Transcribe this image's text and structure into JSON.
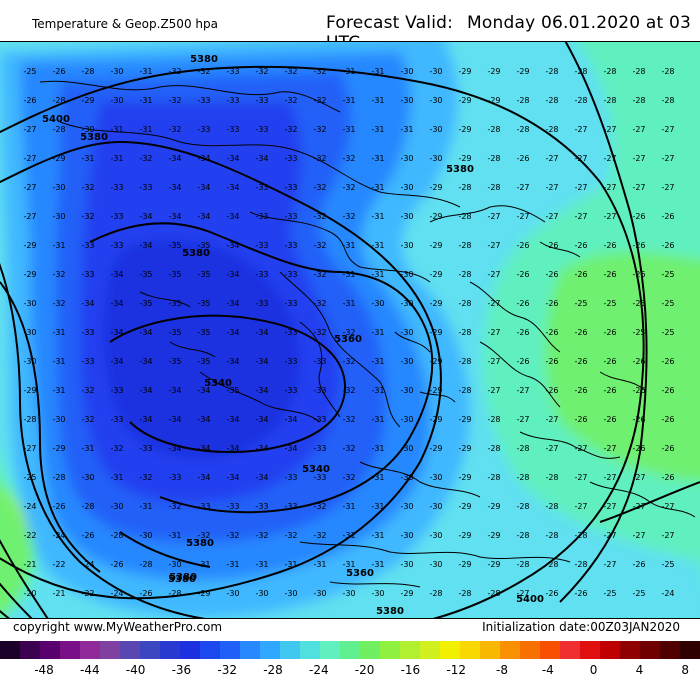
{
  "header": {
    "title": "Temperature & Geop.Z500 hpa",
    "forecast_label": "Forecast Valid:",
    "forecast_value": "Monday 06.01.2020 at 03 UTC"
  },
  "footer": {
    "copyright": "copyright www.MyWeatherPro.com",
    "initialization": "Initialization date:00Z03JAN2020"
  },
  "legend": {
    "tick_labels": [
      "-48",
      "-44",
      "-40",
      "-36",
      "-32",
      "-28",
      "-24",
      "-20",
      "-16",
      "-12",
      "-8",
      "-4",
      "0",
      "4",
      "8"
    ],
    "colors": [
      "#1a0028",
      "#3c0050",
      "#5a006e",
      "#7a1088",
      "#902a9a",
      "#8040a0",
      "#5a46b0",
      "#3c46c0",
      "#2838d0",
      "#1c30e0",
      "#1c48f0",
      "#2060f8",
      "#2888ff",
      "#30a8ff",
      "#40c8f0",
      "#50e0e0",
      "#60f0c0",
      "#60f090",
      "#70f060",
      "#90f040",
      "#b0f030",
      "#d0f020",
      "#f0f000",
      "#f8d800",
      "#f8b800",
      "#f89000",
      "#f87000",
      "#f85000",
      "#f03030",
      "#e01010",
      "#c00000",
      "#900000",
      "#700000",
      "#500000",
      "#300000"
    ]
  },
  "map": {
    "colors": {
      "deep": "#1c30e0",
      "dark": "#2040f0",
      "mid": "#2060f8",
      "medium": "#2888ff",
      "light": "#40b8ff",
      "cyan": "#60e0f0",
      "teal": "#60f0c0",
      "green": "#70f070",
      "lime": "#a0f040"
    },
    "contour_labels": [
      "5380",
      "5400",
      "5380",
      "5380",
      "5360",
      "5340",
      "5340",
      "5380",
      "5380",
      "5380",
      "5380",
      "5360",
      "5400",
      "5380"
    ],
    "temp_grid": [
      [
        "-25",
        "-26",
        "-28",
        "-30",
        "-31",
        "-32",
        "-32",
        "-33",
        "-32",
        "-32",
        "-32",
        "-31",
        "-31",
        "-30",
        "-30",
        "-29",
        "-29",
        "-29",
        "-28",
        "-28",
        "-28",
        "-28",
        "-28"
      ],
      [
        "-26",
        "-28",
        "-29",
        "-30",
        "-31",
        "-32",
        "-33",
        "-33",
        "-33",
        "-32",
        "-32",
        "-31",
        "-31",
        "-30",
        "-30",
        "-29",
        "-29",
        "-28",
        "-28",
        "-28",
        "-28",
        "-28",
        "-28"
      ],
      [
        "-27",
        "-28",
        "-30",
        "-31",
        "-31",
        "-32",
        "-33",
        "-33",
        "-33",
        "-32",
        "-32",
        "-31",
        "-31",
        "-31",
        "-30",
        "-29",
        "-28",
        "-28",
        "-28",
        "-27",
        "-27",
        "-27",
        "-27"
      ],
      [
        "-27",
        "-29",
        "-31",
        "-31",
        "-32",
        "-34",
        "-34",
        "-34",
        "-34",
        "-33",
        "-32",
        "-32",
        "-31",
        "-30",
        "-30",
        "-29",
        "-28",
        "-26",
        "-27",
        "-27",
        "-27",
        "-27",
        "-27"
      ],
      [
        "-27",
        "-30",
        "-32",
        "-33",
        "-33",
        "-34",
        "-34",
        "-34",
        "-33",
        "-33",
        "-32",
        "-32",
        "-31",
        "-30",
        "-29",
        "-28",
        "-28",
        "-27",
        "-27",
        "-27",
        "-27",
        "-27",
        "-27"
      ],
      [
        "-27",
        "-30",
        "-32",
        "-33",
        "-34",
        "-34",
        "-34",
        "-34",
        "-33",
        "-33",
        "-32",
        "-32",
        "-31",
        "-30",
        "-29",
        "-28",
        "-27",
        "-27",
        "-27",
        "-27",
        "-27",
        "-26",
        "-26"
      ],
      [
        "-29",
        "-31",
        "-33",
        "-33",
        "-34",
        "-35",
        "-35",
        "-34",
        "-33",
        "-33",
        "-32",
        "-31",
        "-31",
        "-30",
        "-29",
        "-28",
        "-27",
        "-26",
        "-26",
        "-26",
        "-26",
        "-26",
        "-26"
      ],
      [
        "-29",
        "-32",
        "-33",
        "-34",
        "-35",
        "-35",
        "-35",
        "-34",
        "-33",
        "-33",
        "-32",
        "-31",
        "-31",
        "-30",
        "-29",
        "-28",
        "-27",
        "-26",
        "-26",
        "-26",
        "-26",
        "-26",
        "-25"
      ],
      [
        "-30",
        "-32",
        "-34",
        "-34",
        "-35",
        "-35",
        "-35",
        "-34",
        "-33",
        "-33",
        "-32",
        "-31",
        "-30",
        "-30",
        "-29",
        "-28",
        "-27",
        "-26",
        "-26",
        "-25",
        "-25",
        "-25",
        "-25"
      ],
      [
        "-30",
        "-31",
        "-33",
        "-34",
        "-34",
        "-35",
        "-35",
        "-34",
        "-34",
        "-33",
        "-32",
        "-32",
        "-31",
        "-30",
        "-29",
        "-28",
        "-27",
        "-26",
        "-26",
        "-26",
        "-26",
        "-25",
        "-25"
      ],
      [
        "-30",
        "-31",
        "-33",
        "-34",
        "-34",
        "-35",
        "-35",
        "-34",
        "-34",
        "-33",
        "-33",
        "-32",
        "-31",
        "-30",
        "-29",
        "-28",
        "-27",
        "-26",
        "-26",
        "-26",
        "-26",
        "-26",
        "-26"
      ],
      [
        "-29",
        "-31",
        "-32",
        "-33",
        "-34",
        "-34",
        "-34",
        "-35",
        "-34",
        "-33",
        "-33",
        "-32",
        "-31",
        "-30",
        "-29",
        "-28",
        "-27",
        "-27",
        "-26",
        "-26",
        "-26",
        "-26",
        "-26"
      ],
      [
        "-28",
        "-30",
        "-32",
        "-33",
        "-34",
        "-34",
        "-34",
        "-34",
        "-34",
        "-34",
        "-33",
        "-32",
        "-31",
        "-30",
        "-29",
        "-29",
        "-28",
        "-27",
        "-27",
        "-26",
        "-26",
        "-26",
        "-26"
      ],
      [
        "-27",
        "-29",
        "-31",
        "-32",
        "-33",
        "-34",
        "-34",
        "-34",
        "-34",
        "-34",
        "-33",
        "-32",
        "-31",
        "-30",
        "-29",
        "-29",
        "-28",
        "-28",
        "-27",
        "-27",
        "-27",
        "-26",
        "-26"
      ],
      [
        "-25",
        "-28",
        "-30",
        "-31",
        "-32",
        "-33",
        "-34",
        "-34",
        "-34",
        "-33",
        "-33",
        "-32",
        "-31",
        "-30",
        "-30",
        "-29",
        "-28",
        "-28",
        "-28",
        "-27",
        "-27",
        "-27",
        "-26"
      ],
      [
        "-24",
        "-26",
        "-28",
        "-30",
        "-31",
        "-32",
        "-33",
        "-33",
        "-33",
        "-33",
        "-32",
        "-31",
        "-31",
        "-30",
        "-30",
        "-29",
        "-29",
        "-28",
        "-28",
        "-27",
        "-27",
        "-27",
        "-27"
      ],
      [
        "-22",
        "-24",
        "-26",
        "-28",
        "-30",
        "-31",
        "-32",
        "-32",
        "-32",
        "-32",
        "-32",
        "-31",
        "-31",
        "-30",
        "-30",
        "-29",
        "-29",
        "-28",
        "-28",
        "-28",
        "-27",
        "-27",
        "-27"
      ],
      [
        "-21",
        "-22",
        "-24",
        "-26",
        "-28",
        "-30",
        "-31",
        "-31",
        "-31",
        "-31",
        "-31",
        "-31",
        "-31",
        "-30",
        "-30",
        "-29",
        "-29",
        "-28",
        "-28",
        "-28",
        "-27",
        "-26",
        "-25"
      ],
      [
        "-20",
        "-21",
        "-22",
        "-24",
        "-26",
        "-28",
        "-29",
        "-30",
        "-30",
        "-30",
        "-30",
        "-30",
        "-30",
        "-29",
        "-28",
        "-28",
        "-28",
        "-27",
        "-26",
        "-26",
        "-25",
        "-25",
        "-24"
      ],
      [
        "-20",
        "-21",
        "-22",
        "-23",
        "-25",
        "-26",
        "-28",
        "-29",
        "-29",
        "-29",
        "-28",
        "-28",
        "-27",
        "-27",
        "-27",
        "-26",
        "-26",
        "-26",
        "-25",
        "-25",
        "-24",
        "-24",
        "-24"
      ]
    ]
  }
}
